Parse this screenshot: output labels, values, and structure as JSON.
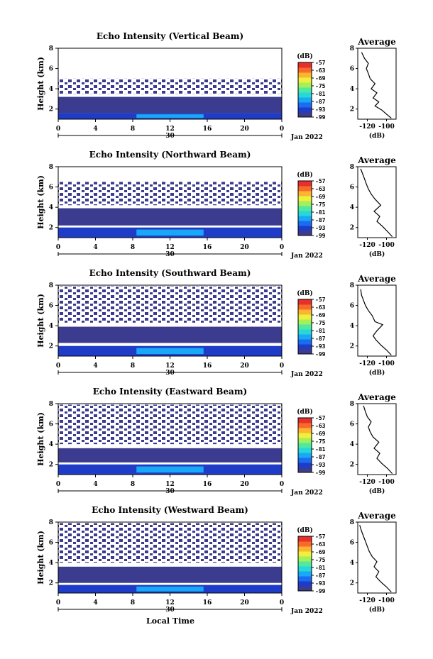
{
  "chart_data": {
    "type": "heatmap",
    "x_axis": {
      "ticks": [
        "0",
        "4",
        "8",
        "12",
        "16",
        "20",
        "0"
      ],
      "center_label": "30",
      "date_label": "Jan 2022",
      "label": "Local Time",
      "range": [
        0,
        24
      ]
    },
    "y_axis": {
      "label": "Height (km)",
      "ticks": [
        "2",
        "4",
        "6",
        "8"
      ],
      "range": [
        1,
        8
      ]
    },
    "colorbar": {
      "unit": "(dB)",
      "ticks": [
        "-57",
        "-63",
        "-69",
        "-75",
        "-81",
        "-87",
        "-93",
        "-99"
      ],
      "range": [
        -99,
        -57
      ],
      "colors": [
        "#3b3b8f",
        "#1e3cc8",
        "#1a6cf0",
        "#19a8f5",
        "#28d8d8",
        "#4fe9a0",
        "#a3f05a",
        "#eef03c",
        "#fbb531",
        "#f86a2a",
        "#e8302a"
      ]
    },
    "profile_axis": {
      "title": "Average",
      "label": "(dB)",
      "xticks": [
        "-120",
        "-100"
      ],
      "xrange": [
        -130,
        -90
      ],
      "yticks": [
        "2",
        "4",
        "6",
        "8"
      ],
      "yrange": [
        1,
        8
      ]
    },
    "panels": [
      {
        "title": "Echo Intensity (Vertical Beam)",
        "layers": [
          {
            "y0": 1.0,
            "y1": 1.6,
            "value": -93
          },
          {
            "y0": 1.6,
            "y1": 3.2,
            "value": -98
          },
          {
            "y0": 3.5,
            "y1": 5.0,
            "value": -99,
            "sparse": true
          }
        ],
        "profile": [
          [
            -95,
            1.1
          ],
          [
            -100,
            1.5
          ],
          [
            -105,
            1.9
          ],
          [
            -112,
            2.3
          ],
          [
            -108,
            2.7
          ],
          [
            -114,
            3.1
          ],
          [
            -110,
            3.6
          ],
          [
            -116,
            4.0
          ],
          [
            -112,
            4.5
          ],
          [
            -117,
            5.0
          ],
          [
            -119,
            5.5
          ],
          [
            -121,
            6.0
          ],
          [
            -119,
            6.5
          ],
          [
            -123,
            7.0
          ],
          [
            -126,
            7.6
          ]
        ]
      },
      {
        "title": "Echo Intensity (Northward Beam)",
        "layers": [
          {
            "y0": 1.0,
            "y1": 2.0,
            "value": -93
          },
          {
            "y0": 2.2,
            "y1": 3.9,
            "value": -98
          },
          {
            "y0": 4.2,
            "y1": 6.5,
            "value": -99,
            "sparse": true
          }
        ],
        "profile": [
          [
            -94,
            1.1
          ],
          [
            -99,
            1.6
          ],
          [
            -104,
            2.1
          ],
          [
            -110,
            2.6
          ],
          [
            -107,
            3.1
          ],
          [
            -113,
            3.6
          ],
          [
            -106,
            4.2
          ],
          [
            -112,
            4.8
          ],
          [
            -116,
            5.3
          ],
          [
            -119,
            5.8
          ],
          [
            -121,
            6.3
          ],
          [
            -123,
            6.8
          ],
          [
            -125,
            7.3
          ],
          [
            -127,
            7.8
          ]
        ]
      },
      {
        "title": "Echo Intensity (Southward Beam)",
        "layers": [
          {
            "y0": 1.0,
            "y1": 2.0,
            "value": -92
          },
          {
            "y0": 2.3,
            "y1": 3.9,
            "value": -98
          },
          {
            "y0": 4.3,
            "y1": 7.9,
            "value": -99,
            "sparse": true
          }
        ],
        "profile": [
          [
            -95,
            1.1
          ],
          [
            -100,
            1.6
          ],
          [
            -106,
            2.1
          ],
          [
            -111,
            2.6
          ],
          [
            -114,
            3.0
          ],
          [
            -110,
            3.5
          ],
          [
            -104,
            4.1
          ],
          [
            -112,
            4.4
          ],
          [
            -115,
            5.0
          ],
          [
            -119,
            5.5
          ],
          [
            -122,
            6.0
          ],
          [
            -124,
            6.5
          ],
          [
            -126,
            7.0
          ],
          [
            -127,
            7.6
          ]
        ]
      },
      {
        "title": "Echo Intensity (Eastward Beam)",
        "layers": [
          {
            "y0": 1.0,
            "y1": 2.0,
            "value": -93
          },
          {
            "y0": 2.2,
            "y1": 3.6,
            "value": -98
          },
          {
            "y0": 4.0,
            "y1": 7.9,
            "value": -99,
            "sparse": true
          }
        ],
        "profile": [
          [
            -94,
            1.1
          ],
          [
            -99,
            1.6
          ],
          [
            -105,
            2.1
          ],
          [
            -110,
            2.6
          ],
          [
            -107,
            3.1
          ],
          [
            -113,
            3.6
          ],
          [
            -108,
            4.2
          ],
          [
            -114,
            4.7
          ],
          [
            -117,
            5.2
          ],
          [
            -119,
            5.7
          ],
          [
            -116,
            6.2
          ],
          [
            -120,
            6.7
          ],
          [
            -122,
            7.2
          ],
          [
            -124,
            7.8
          ]
        ]
      },
      {
        "title": "Echo Intensity (Westward Beam)",
        "layers": [
          {
            "y0": 1.0,
            "y1": 1.8,
            "value": -93
          },
          {
            "y0": 2.0,
            "y1": 3.6,
            "value": -98
          },
          {
            "y0": 4.0,
            "y1": 7.9,
            "value": -99,
            "sparse": true
          }
        ],
        "profile": [
          [
            -95,
            1.1
          ],
          [
            -100,
            1.6
          ],
          [
            -106,
            2.1
          ],
          [
            -111,
            2.6
          ],
          [
            -108,
            3.1
          ],
          [
            -113,
            3.6
          ],
          [
            -110,
            4.1
          ],
          [
            -115,
            4.6
          ],
          [
            -118,
            5.1
          ],
          [
            -120,
            5.6
          ],
          [
            -122,
            6.1
          ],
          [
            -124,
            6.6
          ],
          [
            -126,
            7.1
          ],
          [
            -128,
            7.7
          ]
        ]
      }
    ]
  }
}
